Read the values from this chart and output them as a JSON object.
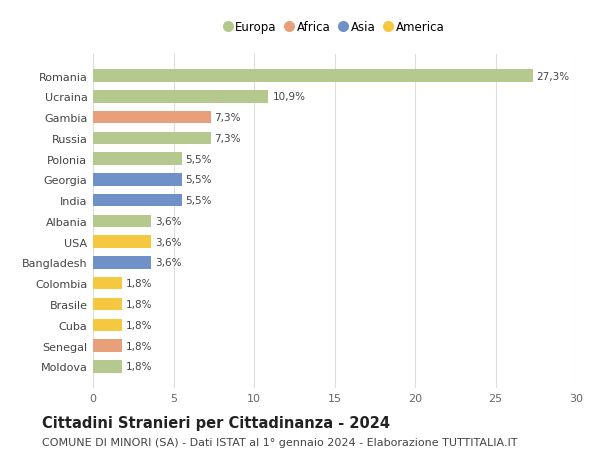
{
  "categories": [
    "Moldova",
    "Senegal",
    "Cuba",
    "Brasile",
    "Colombia",
    "Bangladesh",
    "USA",
    "Albania",
    "India",
    "Georgia",
    "Polonia",
    "Russia",
    "Gambia",
    "Ucraina",
    "Romania"
  ],
  "values": [
    1.8,
    1.8,
    1.8,
    1.8,
    1.8,
    3.6,
    3.6,
    3.6,
    5.5,
    5.5,
    5.5,
    7.3,
    7.3,
    10.9,
    27.3
  ],
  "labels": [
    "1,8%",
    "1,8%",
    "1,8%",
    "1,8%",
    "1,8%",
    "3,6%",
    "3,6%",
    "3,6%",
    "5,5%",
    "5,5%",
    "5,5%",
    "7,3%",
    "7,3%",
    "10,9%",
    "27,3%"
  ],
  "colors": [
    "#b5c98e",
    "#e8a07a",
    "#f5c842",
    "#f5c842",
    "#f5c842",
    "#7090c8",
    "#f5c842",
    "#b5c98e",
    "#7090c8",
    "#7090c8",
    "#b5c98e",
    "#b5c98e",
    "#e8a07a",
    "#b5c98e",
    "#b5c98e"
  ],
  "continent": [
    "Europa",
    "Africa",
    "America",
    "America",
    "America",
    "Asia",
    "America",
    "Europa",
    "Asia",
    "Asia",
    "Europa",
    "Europa",
    "Africa",
    "Europa",
    "Europa"
  ],
  "legend_labels": [
    "Europa",
    "Africa",
    "Asia",
    "America"
  ],
  "legend_colors": [
    "#b5c98e",
    "#e8a07a",
    "#7090c8",
    "#f5c842"
  ],
  "title": "Cittadini Stranieri per Cittadinanza - 2024",
  "subtitle": "COMUNE DI MINORI (SA) - Dati ISTAT al 1° gennaio 2024 - Elaborazione TUTTITALIA.IT",
  "xlim": [
    0,
    30
  ],
  "xticks": [
    0,
    5,
    10,
    15,
    20,
    25,
    30
  ],
  "background_color": "#ffffff",
  "grid_color": "#dddddd",
  "bar_height": 0.6,
  "title_fontsize": 10.5,
  "subtitle_fontsize": 8,
  "tick_fontsize": 8,
  "label_fontsize": 7.5,
  "legend_fontsize": 8.5
}
